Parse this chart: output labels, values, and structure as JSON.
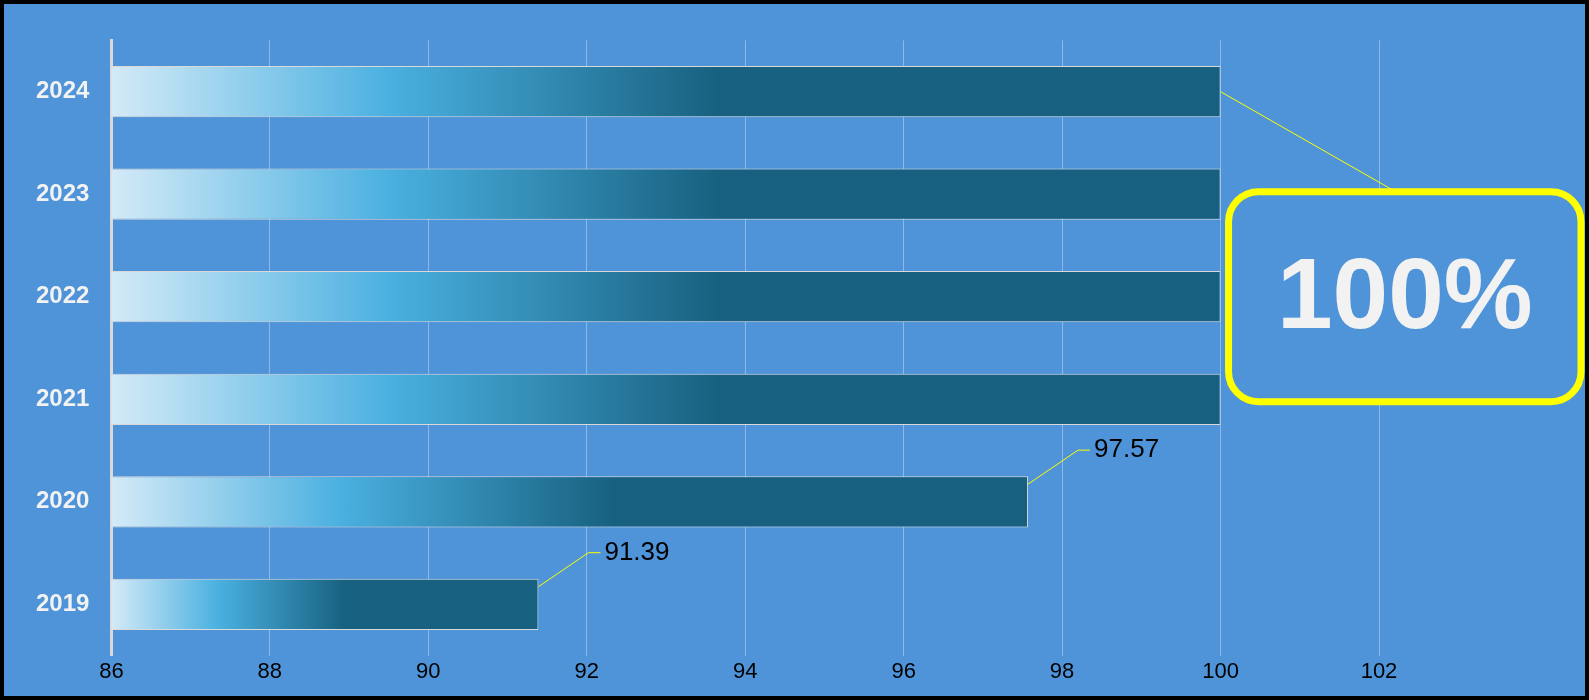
{
  "chart_data": {
    "type": "bar",
    "orientation": "horizontal",
    "categories": [
      "2024",
      "2023",
      "2022",
      "2021",
      "2020",
      "2019"
    ],
    "values": [
      100,
      100,
      100,
      100,
      97.57,
      91.39
    ],
    "color": "#17607f",
    "value_labels": [
      null,
      null,
      null,
      null,
      "97.57",
      "91.39"
    ],
    "annotations": [
      {
        "text": "100%",
        "x": 100,
        "y": "2024"
      }
    ],
    "xlim": [
      86,
      104.6
    ],
    "xticks": [
      86,
      88,
      90,
      92,
      94,
      96,
      98,
      100,
      102
    ],
    "grid": "x",
    "legend": false
  }
}
